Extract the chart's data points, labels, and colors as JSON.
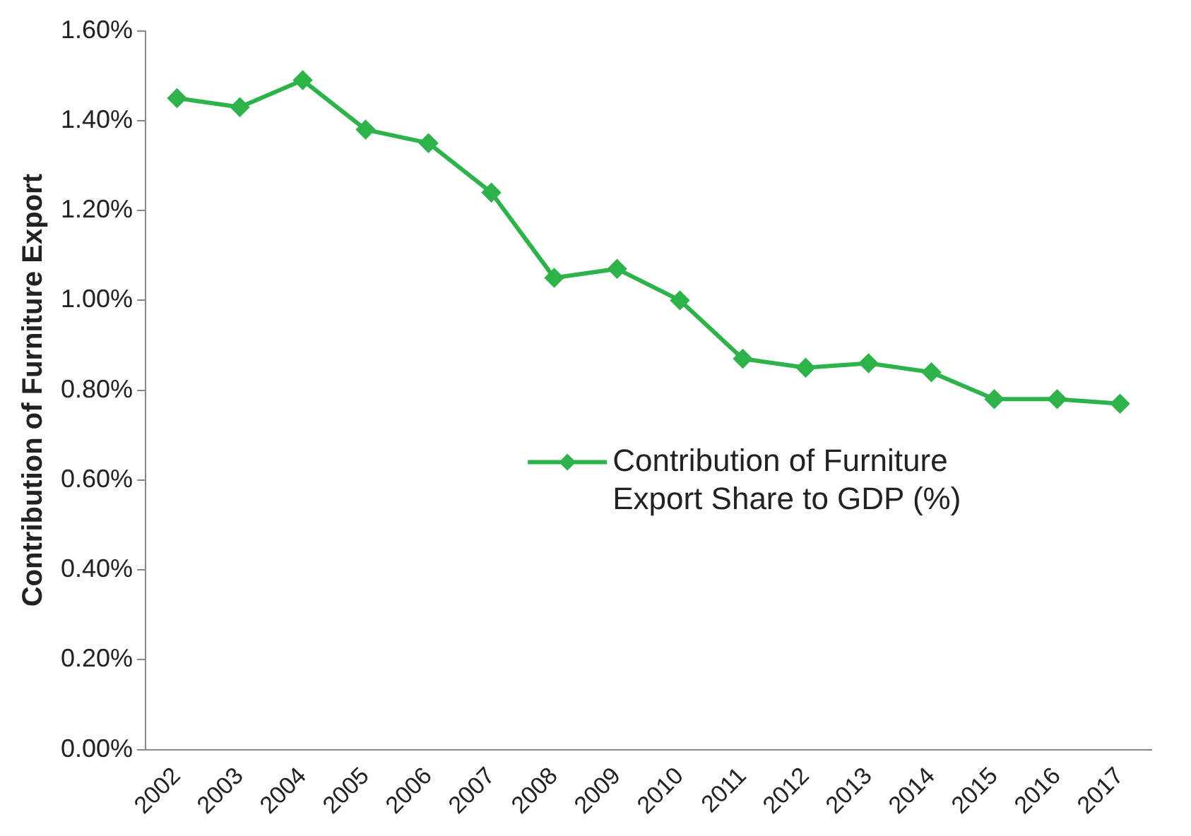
{
  "chart_data": {
    "type": "line",
    "ylabel": "Contribution of Furniture Export",
    "categories": [
      "2002",
      "2003",
      "2004",
      "2005",
      "2006",
      "2007",
      "2008",
      "2009",
      "2010",
      "2011",
      "2012",
      "2013",
      "2014",
      "2015",
      "2016",
      "2017"
    ],
    "series": [
      {
        "name": "Contribution of Furniture Export Share to GDP (%)",
        "color": "#2db34a",
        "values": [
          1.45,
          1.43,
          1.49,
          1.38,
          1.35,
          1.24,
          1.05,
          1.07,
          1.0,
          0.87,
          0.85,
          0.86,
          0.84,
          0.78,
          0.78,
          0.77
        ]
      }
    ],
    "ylim": [
      0,
      1.6
    ],
    "yticks": [
      {
        "value": 0,
        "label": "0.00%"
      },
      {
        "value": 0.2,
        "label": "0.20%"
      },
      {
        "value": 0.4,
        "label": "0.40%"
      },
      {
        "value": 0.6,
        "label": "0.60%"
      },
      {
        "value": 0.8,
        "label": "0.80%"
      },
      {
        "value": 1.0,
        "label": "1.00%"
      },
      {
        "value": 1.2,
        "label": "1.20%"
      },
      {
        "value": 1.4,
        "label": "1.40%"
      },
      {
        "value": 1.6,
        "label": "1.60%"
      }
    ],
    "grid": false,
    "legend": "center",
    "marker": "diamond",
    "line_style": "solid"
  }
}
